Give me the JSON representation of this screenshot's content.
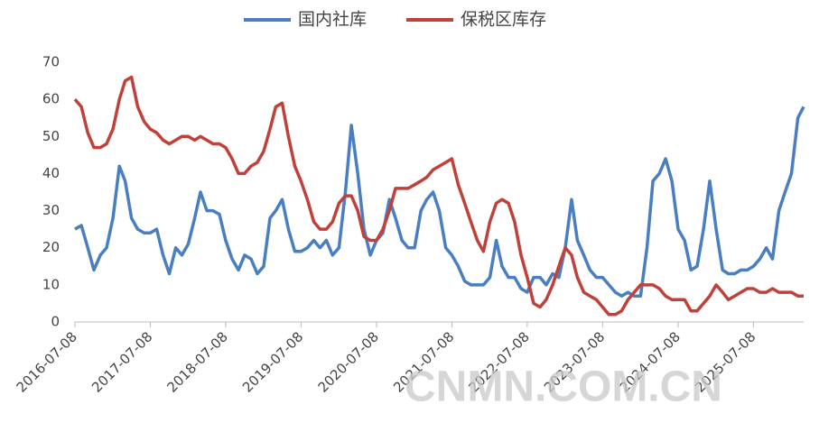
{
  "chart_data": {
    "type": "line",
    "legend_position": "top",
    "watermark": "CNMN.COM.CN",
    "x": [
      "2016-07-08",
      "2016-08-08",
      "2016-09-08",
      "2016-10-08",
      "2016-11-08",
      "2016-12-08",
      "2017-01-08",
      "2017-02-08",
      "2017-03-08",
      "2017-04-08",
      "2017-05-08",
      "2017-06-08",
      "2017-07-08",
      "2017-08-08",
      "2017-09-08",
      "2017-10-08",
      "2017-11-08",
      "2017-12-08",
      "2018-01-08",
      "2018-02-08",
      "2018-03-08",
      "2018-04-08",
      "2018-05-08",
      "2018-06-08",
      "2018-07-08",
      "2018-08-08",
      "2018-09-08",
      "2018-10-08",
      "2018-11-08",
      "2018-12-08",
      "2019-01-08",
      "2019-02-08",
      "2019-03-08",
      "2019-04-08",
      "2019-05-08",
      "2019-06-08",
      "2019-07-08",
      "2019-08-08",
      "2019-09-08",
      "2019-10-08",
      "2019-11-08",
      "2019-12-08",
      "2020-01-08",
      "2020-02-08",
      "2020-03-08",
      "2020-04-08",
      "2020-05-08",
      "2020-06-08",
      "2020-07-08",
      "2020-08-08",
      "2020-09-08",
      "2020-10-08",
      "2020-11-08",
      "2020-12-08",
      "2021-01-08",
      "2021-02-08",
      "2021-03-08",
      "2021-04-08",
      "2021-05-08",
      "2021-06-08",
      "2021-07-08",
      "2021-08-08",
      "2021-09-08",
      "2021-10-08",
      "2021-11-08",
      "2021-12-08",
      "2022-01-08",
      "2022-02-08",
      "2022-03-08",
      "2022-04-08",
      "2022-05-08",
      "2022-06-08",
      "2022-07-08",
      "2022-08-08",
      "2022-09-08",
      "2022-10-08",
      "2022-11-08",
      "2022-12-08",
      "2023-01-08",
      "2023-02-08",
      "2023-03-08",
      "2023-04-08",
      "2023-05-08",
      "2023-06-08",
      "2023-07-08",
      "2023-08-08",
      "2023-09-08",
      "2023-10-08",
      "2023-11-08",
      "2023-12-08",
      "2024-01-08",
      "2024-02-08",
      "2024-03-08",
      "2024-04-08",
      "2024-05-08",
      "2024-06-08",
      "2024-07-08",
      "2024-08-08",
      "2024-09-08",
      "2024-10-08",
      "2024-11-08",
      "2024-12-08",
      "2025-01-08",
      "2025-02-08",
      "2025-03-08",
      "2025-04-08",
      "2025-05-08",
      "2025-06-08",
      "2025-07-08",
      "2025-08-08",
      "2025-09-08",
      "2025-10-08",
      "2025-11-08",
      "2025-12-08",
      "2026-01-08",
      "2026-02-08",
      "2026-03-08"
    ],
    "series": [
      {
        "name": "国内社库",
        "color": "#4a7ec2",
        "values": [
          25,
          26,
          20,
          14,
          18,
          20,
          28,
          42,
          38,
          28,
          25,
          24,
          24,
          25,
          18,
          13,
          20,
          18,
          21,
          28,
          35,
          30,
          30,
          29,
          22,
          17,
          14,
          18,
          17,
          13,
          15,
          28,
          30,
          33,
          25,
          19,
          19,
          20,
          22,
          20,
          22,
          18,
          20,
          35,
          53,
          40,
          25,
          18,
          22,
          24,
          33,
          28,
          22,
          20,
          20,
          30,
          33,
          35,
          30,
          20,
          18,
          15,
          11,
          10,
          10,
          10,
          12,
          22,
          15,
          12,
          12,
          9,
          8,
          12,
          12,
          10,
          13,
          12,
          20,
          33,
          22,
          18,
          14,
          12,
          12,
          10,
          8,
          7,
          8,
          7,
          7,
          20,
          38,
          40,
          44,
          38,
          25,
          22,
          14,
          15,
          25,
          38,
          25,
          14,
          13,
          13,
          14,
          14,
          15,
          17,
          20,
          17,
          30,
          35,
          40,
          55,
          58
        ]
      },
      {
        "name": "保税区库存",
        "color": "#c0413a",
        "values": [
          60,
          58,
          51,
          47,
          47,
          48,
          52,
          60,
          65,
          66,
          58,
          54,
          52,
          51,
          49,
          48,
          49,
          50,
          50,
          49,
          50,
          49,
          48,
          48,
          47,
          44,
          40,
          40,
          42,
          43,
          46,
          52,
          58,
          59,
          50,
          42,
          38,
          33,
          27,
          25,
          25,
          27,
          32,
          34,
          34,
          30,
          23,
          22,
          22,
          25,
          30,
          36,
          36,
          36,
          37,
          38,
          39,
          41,
          42,
          43,
          44,
          37,
          32,
          27,
          22,
          19,
          27,
          32,
          33,
          32,
          27,
          18,
          12,
          5,
          4,
          6,
          10,
          15,
          20,
          18,
          12,
          8,
          7,
          6,
          4,
          2,
          2,
          3,
          6,
          8,
          10,
          10,
          10,
          9,
          7,
          6,
          6,
          6,
          3,
          3,
          5,
          7,
          10,
          8,
          6,
          7,
          8,
          9,
          9,
          8,
          8,
          9,
          8,
          8,
          8,
          7,
          7
        ]
      }
    ],
    "xlim": [
      "2016-07-08",
      "2026-03-08"
    ],
    "xticks": [
      "2016-07-08",
      "2017-07-08",
      "2018-07-08",
      "2019-07-08",
      "2020-07-08",
      "2021-07-08",
      "2022-07-08",
      "2023-07-08",
      "2024-07-08",
      "2025-07-08"
    ],
    "ylim": [
      0,
      70
    ],
    "yticks": [
      0,
      10,
      20,
      30,
      40,
      50,
      60,
      70
    ],
    "grid": false
  }
}
